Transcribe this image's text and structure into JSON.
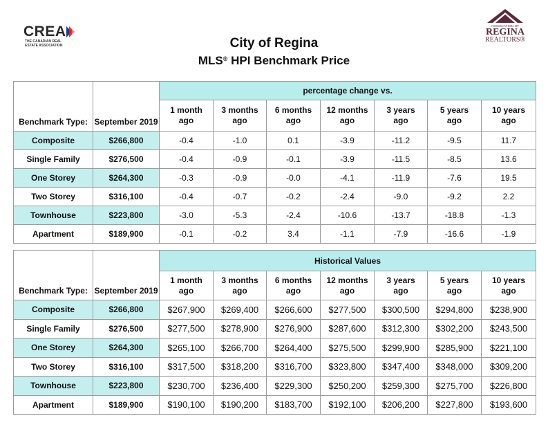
{
  "logos": {
    "crea": {
      "word": "CREA",
      "subtitle": "THE CANADIAN REAL ESTATE ASSOCIATION"
    },
    "regina": {
      "assoc": "ASSOCIATION OF",
      "name": "REGINA",
      "realtors": "REALTORS®"
    }
  },
  "title": "City of Regina",
  "subtitle": {
    "pre": "MLS",
    "reg": "®",
    "post": " HPI Benchmark Price"
  },
  "colors": {
    "teal_band": "#b9ecec",
    "teal_row": "#c5eeee",
    "border": "#9a9a9a"
  },
  "table_labels": {
    "benchmark_type": "Benchmark Type:",
    "month": "September 2019"
  },
  "periods": [
    {
      "l1": "1 month",
      "l2": "ago"
    },
    {
      "l1": "3 months",
      "l2": "ago"
    },
    {
      "l1": "6 months",
      "l2": "ago"
    },
    {
      "l1": "12 months",
      "l2": "ago"
    },
    {
      "l1": "3 years",
      "l2": "ago"
    },
    {
      "l1": "5 years",
      "l2": "ago"
    },
    {
      "l1": "10 years",
      "l2": "ago"
    }
  ],
  "pct_table": {
    "band": "percentage change vs.",
    "rows": [
      {
        "type": "Composite",
        "price": "$266,800",
        "vals": [
          "-0.4",
          "-1.0",
          "0.1",
          "-3.9",
          "-11.2",
          "-9.5",
          "11.7"
        ],
        "shaded": true
      },
      {
        "type": "Single Family",
        "price": "$276,500",
        "vals": [
          "-0.4",
          "-0.9",
          "-0.1",
          "-3.9",
          "-11.5",
          "-8.5",
          "13.6"
        ],
        "shaded": false
      },
      {
        "type": "One Storey",
        "price": "$264,300",
        "vals": [
          "-0.3",
          "-0.9",
          "-0.0",
          "-4.1",
          "-11.9",
          "-7.6",
          "19.5"
        ],
        "shaded": true
      },
      {
        "type": "Two Storey",
        "price": "$316,100",
        "vals": [
          "-0.4",
          "-0.7",
          "-0.2",
          "-2.4",
          "-9.0",
          "-9.2",
          "2.2"
        ],
        "shaded": false
      },
      {
        "type": "Townhouse",
        "price": "$223,800",
        "vals": [
          "-3.0",
          "-5.3",
          "-2.4",
          "-10.6",
          "-13.7",
          "-18.8",
          "-1.3"
        ],
        "shaded": true
      },
      {
        "type": "Apartment",
        "price": "$189,900",
        "vals": [
          "-0.1",
          "-0.2",
          "3.4",
          "-1.1",
          "-7.9",
          "-16.6",
          "-1.9"
        ],
        "shaded": false
      }
    ]
  },
  "hist_table": {
    "band": "Historical Values",
    "rows": [
      {
        "type": "Composite",
        "price": "$266,800",
        "vals": [
          "$267,900",
          "$269,400",
          "$266,600",
          "$277,500",
          "$300,500",
          "$294,800",
          "$238,900"
        ],
        "shaded": true
      },
      {
        "type": "Single Family",
        "price": "$276,500",
        "vals": [
          "$277,500",
          "$278,900",
          "$276,900",
          "$287,600",
          "$312,300",
          "$302,200",
          "$243,500"
        ],
        "shaded": false
      },
      {
        "type": "One Storey",
        "price": "$264,300",
        "vals": [
          "$265,100",
          "$266,700",
          "$264,400",
          "$275,500",
          "$299,900",
          "$285,900",
          "$221,100"
        ],
        "shaded": true
      },
      {
        "type": "Two Storey",
        "price": "$316,100",
        "vals": [
          "$317,500",
          "$318,200",
          "$316,700",
          "$323,800",
          "$347,400",
          "$348,000",
          "$309,200"
        ],
        "shaded": false
      },
      {
        "type": "Townhouse",
        "price": "$223,800",
        "vals": [
          "$230,700",
          "$236,400",
          "$229,300",
          "$250,200",
          "$259,300",
          "$275,700",
          "$226,800"
        ],
        "shaded": true
      },
      {
        "type": "Apartment",
        "price": "$189,900",
        "vals": [
          "$190,100",
          "$190,200",
          "$183,700",
          "$192,100",
          "$206,200",
          "$227,800",
          "$193,600"
        ],
        "shaded": false
      }
    ]
  }
}
